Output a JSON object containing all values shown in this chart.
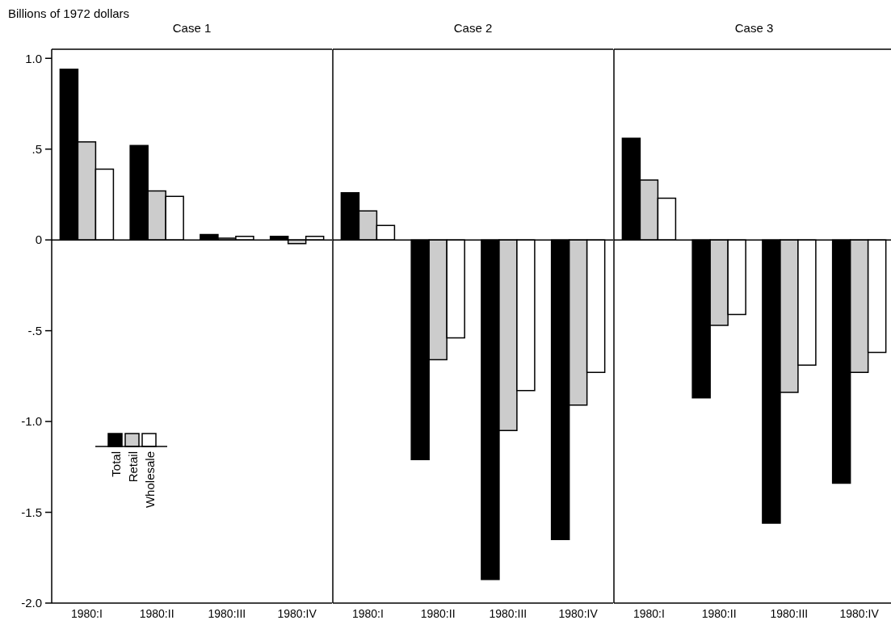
{
  "chart_data": [
    {
      "type": "bar",
      "title": "Case 1",
      "ylabel": "Billions of 1972 dollars",
      "categories": [
        "1980:I",
        "1980:II",
        "1980:III",
        "1980:IV"
      ],
      "legend": "left",
      "series": [
        {
          "name": "Total",
          "color": "#000000",
          "values": [
            0.94,
            0.52,
            0.03,
            0.02
          ]
        },
        {
          "name": "Retail",
          "color": "#cccccc",
          "values": [
            0.54,
            0.27,
            0.01,
            -0.02
          ]
        },
        {
          "name": "Wholesale",
          "color": "#ffffff",
          "values": [
            0.39,
            0.24,
            0.02,
            0.02
          ]
        }
      ],
      "ylim": [
        -2.0,
        1.05
      ],
      "yticks": [
        {
          "value": -2,
          "label": "-2.0"
        },
        {
          "value": -1.5,
          "label": "-1.5"
        },
        {
          "value": -1,
          "label": "-1.0"
        },
        {
          "value": -0.5,
          "label": "-.5"
        },
        0,
        {
          "value": 0.5,
          "label": ".5"
        },
        {
          "value": 1,
          "label": "1.0"
        }
      ],
      "ref_lines": [
        {
          "axis": "y",
          "value": 0
        }
      ]
    },
    {
      "type": "bar",
      "title": "Case 2",
      "categories": [
        "1980:I",
        "1980:II",
        "1980:III",
        "1980:IV"
      ],
      "tick_labels": "x",
      "series": [
        {
          "color": "#000000",
          "values": [
            0.26,
            -1.21,
            -1.87,
            -1.65
          ]
        },
        {
          "color": "#cccccc",
          "values": [
            0.16,
            -0.66,
            -1.05,
            -0.91
          ]
        },
        {
          "color": "#ffffff",
          "values": [
            0.08,
            -0.54,
            -0.83,
            -0.73
          ]
        }
      ],
      "ylim": [
        -2.0,
        1.05
      ],
      "ref_lines": [
        {
          "axis": "y",
          "value": 0
        }
      ]
    },
    {
      "type": "bar",
      "title": "Case 3",
      "categories": [
        "1980:I",
        "1980:II",
        "1980:III",
        "1980:IV"
      ],
      "tick_labels": "x",
      "series": [
        {
          "color": "#000000",
          "values": [
            0.56,
            -0.87,
            -1.56,
            -1.34
          ]
        },
        {
          "color": "#cccccc",
          "values": [
            0.33,
            -0.47,
            -0.84,
            -0.73
          ]
        },
        {
          "color": "#ffffff",
          "values": [
            0.23,
            -0.41,
            -0.69,
            -0.62
          ]
        }
      ],
      "ylim": [
        -2.0,
        1.05
      ],
      "yticks": [
        {
          "value": -1.5,
          "label": null
        },
        {
          "value": -1,
          "label": null
        },
        {
          "value": -0.5,
          "label": null
        },
        {
          "value": 0.5,
          "label": null
        }
      ],
      "ref_lines": [
        {
          "axis": "y",
          "value": 0
        }
      ]
    }
  ]
}
